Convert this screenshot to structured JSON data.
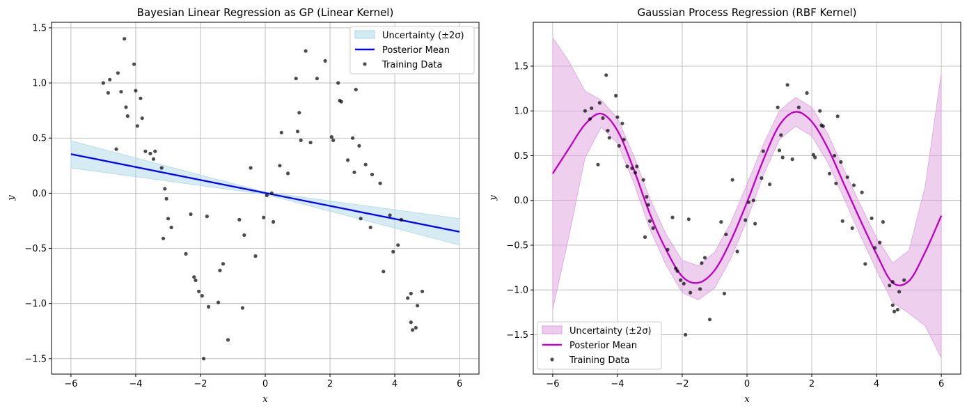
{
  "chart_data": [
    {
      "type": "line",
      "title": "Bayesian Linear Regression as GP (Linear Kernel)",
      "xlabel": "x",
      "ylabel": "y",
      "xlim": [
        -6.6,
        6.6
      ],
      "ylim": [
        -1.64,
        1.55
      ],
      "xticks": [
        -6,
        -4,
        -2,
        0,
        2,
        4,
        6
      ],
      "xtick_labels": [
        "−6",
        "−4",
        "−2",
        "0",
        "2",
        "4",
        "6"
      ],
      "yticks": [
        -1.5,
        -1.0,
        -0.5,
        0.0,
        0.5,
        1.0,
        1.5
      ],
      "ytick_labels": [
        "−1.5",
        "−1.0",
        "−0.5",
        "0.0",
        "0.5",
        "1.0",
        "1.5"
      ],
      "grid": true,
      "legend_position": "top-right",
      "legend": [
        "Uncertainty (±2σ)",
        "Posterior Mean",
        "Training Data"
      ],
      "colors": {
        "band": "#add8e6",
        "mean": "#0000ff",
        "points": "#000000"
      },
      "series": [
        {
          "name": "Posterior Mean",
          "x": [
            -6,
            6
          ],
          "y": [
            0.355,
            -0.35
          ]
        },
        {
          "name": "Uncertainty (±2σ)",
          "x": [
            -6,
            0,
            6
          ],
          "upper": [
            0.475,
            0.01,
            -0.23
          ],
          "lower": [
            0.23,
            -0.01,
            -0.47
          ]
        }
      ]
    },
    {
      "type": "line",
      "title": "Gaussian Process Regression (RBF Kernel)",
      "xlabel": "x",
      "ylabel": "y",
      "xlim": [
        -6.6,
        6.6
      ],
      "ylim": [
        -1.94,
        1.99
      ],
      "xticks": [
        -6,
        -4,
        -2,
        0,
        2,
        4,
        6
      ],
      "xtick_labels": [
        "−6",
        "−4",
        "−2",
        "0",
        "2",
        "4",
        "6"
      ],
      "yticks": [
        -1.5,
        -1.0,
        -0.5,
        0.0,
        0.5,
        1.0,
        1.5
      ],
      "ytick_labels": [
        "−1.5",
        "−1.0",
        "−0.5",
        "0.0",
        "0.5",
        "1.0",
        "1.5"
      ],
      "grid": true,
      "legend_position": "bottom-left",
      "legend": [
        "Uncertainty (±2σ)",
        "Posterior Mean",
        "Training Data"
      ],
      "colors": {
        "band": "#dda0dd",
        "mean": "#bf00bf",
        "points": "#000000"
      },
      "series": [
        {
          "name": "Posterior Mean",
          "x": [
            -6,
            -5.5,
            -5,
            -4.5,
            -4,
            -3.5,
            -3,
            -2.5,
            -2,
            -1.5,
            -1,
            -0.5,
            0,
            0.5,
            1,
            1.5,
            2,
            2.5,
            3,
            3.5,
            4,
            4.5,
            5,
            5.5,
            6
          ],
          "y": [
            0.3,
            0.58,
            0.85,
            0.97,
            0.78,
            0.35,
            -0.15,
            -0.55,
            -0.85,
            -0.92,
            -0.78,
            -0.45,
            -0.02,
            0.45,
            0.84,
            0.99,
            0.88,
            0.58,
            0.18,
            -0.22,
            -0.6,
            -0.92,
            -0.9,
            -0.58,
            -0.17
          ]
        },
        {
          "name": "Uncertainty (±2σ)",
          "x": [
            -6,
            -5.5,
            -5,
            -4.5,
            -4,
            -3.5,
            -3,
            -2.5,
            -2,
            -1.5,
            -1,
            -0.5,
            0,
            0.5,
            1,
            1.5,
            2,
            2.5,
            3,
            3.5,
            4,
            4.5,
            5,
            5.5,
            6
          ],
          "upper": [
            1.82,
            1.55,
            1.22,
            1.12,
            0.92,
            0.5,
            0.02,
            -0.38,
            -0.67,
            -0.73,
            -0.58,
            -0.25,
            0.18,
            0.62,
            1.0,
            1.15,
            1.04,
            0.74,
            0.34,
            -0.05,
            -0.42,
            -0.7,
            -0.56,
            0.15,
            1.42
          ],
          "lower": [
            -1.22,
            -0.4,
            0.48,
            0.82,
            0.64,
            0.2,
            -0.32,
            -0.72,
            -1.03,
            -1.11,
            -0.98,
            -0.65,
            -0.22,
            0.28,
            0.68,
            0.83,
            0.72,
            0.42,
            0.02,
            -0.39,
            -0.78,
            -1.14,
            -1.26,
            -1.4,
            -1.76
          ]
        }
      ]
    }
  ],
  "training_data": {
    "x": [
      -5.0,
      -4.85,
      -4.8,
      -4.6,
      -4.55,
      -4.45,
      -4.35,
      -4.3,
      -4.25,
      -4.05,
      -4.0,
      -3.95,
      -3.85,
      -3.8,
      -3.7,
      -3.55,
      -3.45,
      -3.4,
      -3.2,
      -3.15,
      -3.1,
      -3.05,
      -3.0,
      -2.9,
      -2.45,
      -2.3,
      -2.2,
      -2.15,
      -2.05,
      -1.95,
      -1.9,
      -1.8,
      -1.75,
      -1.45,
      -1.4,
      -1.3,
      -1.15,
      -0.8,
      -0.7,
      -0.65,
      -0.45,
      -0.3,
      -0.05,
      0.05,
      0.2,
      0.25,
      0.45,
      0.5,
      0.7,
      0.95,
      1.0,
      1.05,
      1.1,
      1.25,
      1.4,
      1.6,
      1.85,
      2.05,
      2.1,
      2.25,
      2.3,
      2.35,
      2.55,
      2.7,
      2.75,
      2.8,
      2.9,
      2.95,
      3.1,
      3.25,
      3.3,
      3.55,
      3.65,
      3.85,
      3.95,
      4.1,
      4.2,
      4.4,
      4.5,
      4.55,
      4.65,
      4.7,
      4.85,
      4.5
    ],
    "y": [
      1.0,
      0.91,
      1.03,
      0.4,
      1.09,
      0.92,
      1.4,
      0.78,
      0.7,
      1.17,
      0.93,
      0.61,
      0.86,
      0.68,
      0.38,
      0.36,
      0.31,
      0.38,
      0.23,
      -0.41,
      0.04,
      -0.05,
      -0.23,
      -0.31,
      -0.55,
      -0.19,
      -0.76,
      -0.79,
      -0.89,
      -0.93,
      -1.5,
      -0.21,
      -1.03,
      -0.99,
      -0.7,
      -0.64,
      -1.33,
      -0.24,
      -1.04,
      -0.38,
      0.23,
      -0.57,
      -0.22,
      -0.02,
      0.0,
      -0.26,
      0.25,
      0.55,
      0.18,
      1.04,
      0.56,
      0.73,
      0.48,
      1.29,
      0.46,
      1.04,
      1.2,
      0.51,
      0.48,
      1.0,
      0.84,
      0.83,
      0.3,
      0.5,
      0.19,
      0.94,
      0.43,
      -0.23,
      0.26,
      -0.31,
      0.17,
      0.09,
      -0.71,
      -0.2,
      -0.53,
      -0.47,
      -0.24,
      -0.95,
      -1.17,
      -1.24,
      -1.22,
      -1.02,
      -0.89,
      -0.91
    ]
  }
}
